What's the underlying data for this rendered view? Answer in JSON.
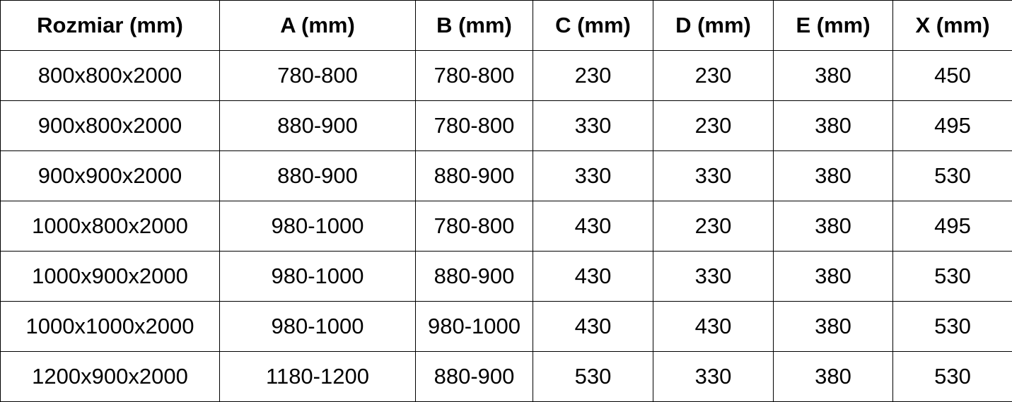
{
  "colors": {
    "background": "#ffffff",
    "border": "#000000",
    "text": "#000000"
  },
  "chart_data": {
    "type": "table",
    "title": "",
    "columns": [
      "Rozmiar (mm)",
      "A (mm)",
      "B (mm)",
      "C (mm)",
      "D (mm)",
      "E (mm)",
      "X (mm)"
    ],
    "rows": [
      [
        "800x800x2000",
        "780-800",
        "780-800",
        "230",
        "230",
        "380",
        "450"
      ],
      [
        "900x800x2000",
        "880-900",
        "780-800",
        "330",
        "230",
        "380",
        "495"
      ],
      [
        "900x900x2000",
        "880-900",
        "880-900",
        "330",
        "330",
        "380",
        "530"
      ],
      [
        "1000x800x2000",
        "980-1000",
        "780-800",
        "430",
        "230",
        "380",
        "495"
      ],
      [
        "1000x900x2000",
        "980-1000",
        "880-900",
        "430",
        "330",
        "380",
        "530"
      ],
      [
        "1000x1000x2000",
        "980-1000",
        "980-1000",
        "430",
        "430",
        "380",
        "530"
      ],
      [
        "1200x900x2000",
        "1180-1200",
        "880-900",
        "530",
        "330",
        "380",
        "530"
      ]
    ]
  }
}
